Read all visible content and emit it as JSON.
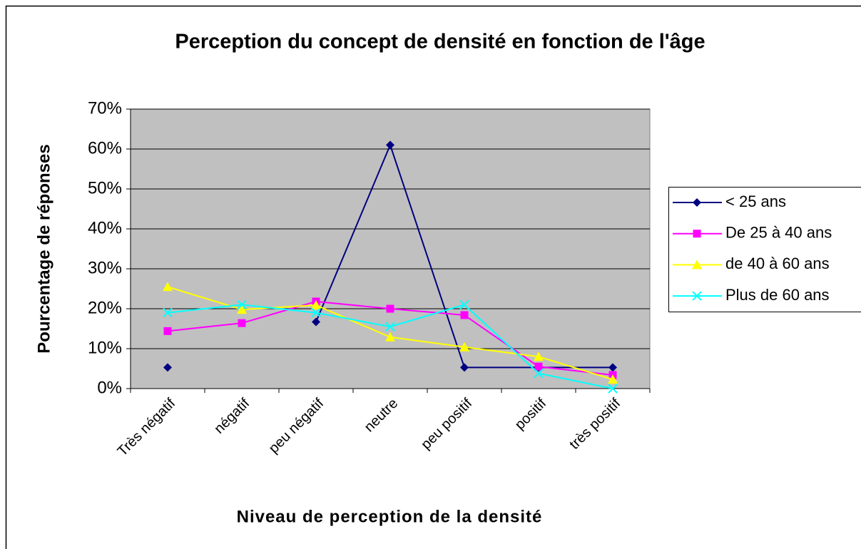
{
  "chart_data": {
    "type": "line",
    "title": "Perception du concept de densité en fonction de l'âge",
    "x_label": "Niveau de perception de la densité",
    "y_label": "Pourcentage de réponses",
    "categories": [
      "Très négatif",
      "négatif",
      "peu négatif",
      "neutre",
      "peu positif",
      "positif",
      "très positif"
    ],
    "series": [
      {
        "name": "< 25 ans",
        "color": "#000080",
        "marker": "diamond",
        "values": [
          5.3,
          null,
          16.7,
          61,
          5.3,
          5.3,
          5.3
        ]
      },
      {
        "name": "De 25 à 40 ans",
        "color": "#ff00ff",
        "marker": "square",
        "values": [
          14.4,
          16.4,
          21.8,
          20,
          18.4,
          5.5,
          3.4
        ]
      },
      {
        "name": "de 40 à 60 ans",
        "color": "#ffff00",
        "marker": "triangle",
        "values": [
          25.5,
          19.8,
          20.9,
          12.9,
          10.4,
          8,
          2.3
        ]
      },
      {
        "name": "Plus de 60 ans",
        "color": "#00ffff",
        "marker": "x",
        "values": [
          19,
          21,
          19,
          15.5,
          21,
          3.8,
          0
        ]
      }
    ],
    "ylim": [
      0,
      70
    ],
    "yticks": [
      {
        "value": 0,
        "label": "0%"
      },
      {
        "value": 10,
        "label": "10%"
      },
      {
        "value": 20,
        "label": "20%"
      },
      {
        "value": 30,
        "label": "30%"
      },
      {
        "value": 40,
        "label": "40%"
      },
      {
        "value": 50,
        "label": "50%"
      },
      {
        "value": 60,
        "label": "60%"
      },
      {
        "value": 70,
        "label": "70%"
      }
    ],
    "grid": true,
    "plot_background": "#c0c0c0",
    "legend": "right"
  }
}
